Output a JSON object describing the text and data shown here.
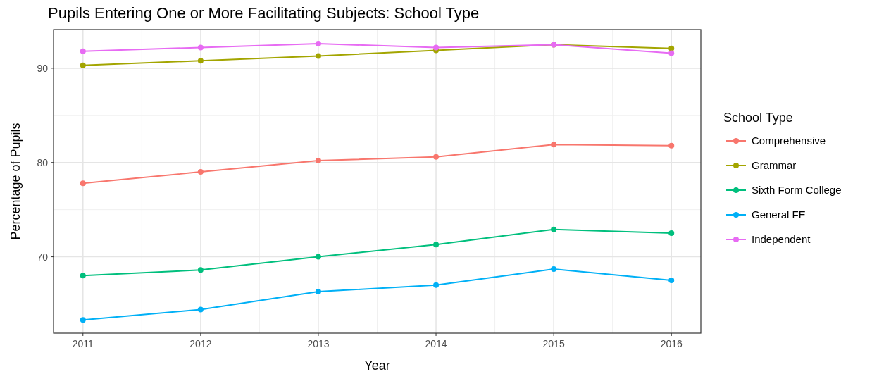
{
  "chart_data": {
    "type": "line",
    "title": "Pupils Entering One or More Facilitating Subjects: School Type",
    "xlabel": "Year",
    "ylabel": "Percentage of Pupils",
    "legend_title": "School Type",
    "x": [
      2011,
      2012,
      2013,
      2014,
      2015,
      2016
    ],
    "series": [
      {
        "name": "Comprehensive",
        "color": "#f8766d",
        "values": [
          77.8,
          79.0,
          80.2,
          80.6,
          81.9,
          81.8
        ]
      },
      {
        "name": "Grammar",
        "color": "#a3a500",
        "values": [
          90.3,
          90.8,
          91.3,
          91.9,
          92.5,
          92.1
        ]
      },
      {
        "name": "Sixth Form College",
        "color": "#00bf7d",
        "values": [
          68.0,
          68.6,
          70.0,
          71.3,
          72.9,
          72.5
        ]
      },
      {
        "name": "General FE",
        "color": "#00b0f6",
        "values": [
          63.3,
          64.4,
          66.3,
          67.0,
          68.7,
          67.5
        ]
      },
      {
        "name": "Independent",
        "color": "#e76bf3",
        "values": [
          91.8,
          92.2,
          92.6,
          92.2,
          92.5,
          91.6
        ]
      }
    ],
    "xlim": [
      2010.75,
      2016.25
    ],
    "xticks": [
      2011,
      2012,
      2013,
      2014,
      2015,
      2016
    ],
    "ylim": [
      61.9,
      94.1
    ],
    "yticks": [
      70,
      80,
      90
    ],
    "grid": true,
    "legend": "right",
    "marker": "circle",
    "line_style": "solid"
  }
}
